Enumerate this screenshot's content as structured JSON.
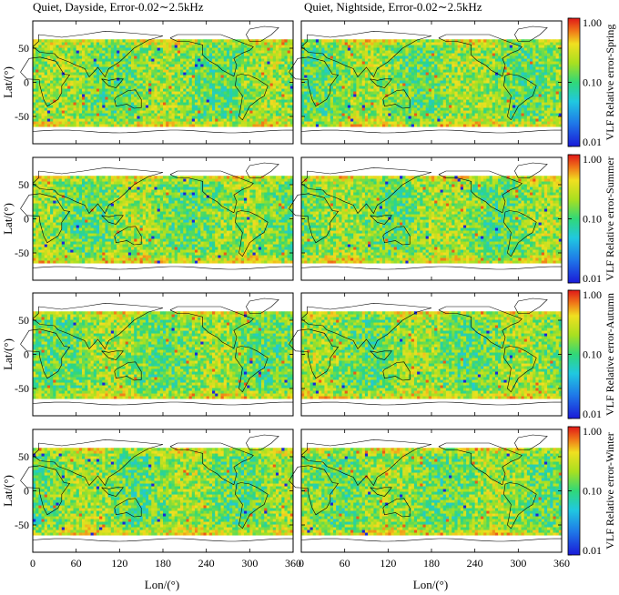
{
  "chart_data": {
    "type": "heatmap",
    "column_titles": [
      "Quiet, Dayside, Error-0.02∼2.5kHz",
      "Quiet, Nightside, Error-0.02∼2.5kHz"
    ],
    "xlabel": "Lon/(°)",
    "ylabel": "Lat/(°)",
    "xlim": [
      0,
      360
    ],
    "ylim": [
      -90,
      90
    ],
    "x_ticks": [
      "0",
      "60",
      "120",
      "180",
      "240",
      "300",
      "360"
    ],
    "y_ticks": [
      "50",
      "0",
      "-50"
    ],
    "colorbar": {
      "scale": "log",
      "range": [
        0.01,
        1.0
      ],
      "tick_labels": [
        "1.00",
        "0.10",
        "0.01"
      ],
      "colormap": [
        "#1a1ad8",
        "#1f78e8",
        "#20c8e0",
        "#30d878",
        "#a8e020",
        "#f0e020",
        "#f07818",
        "#e01818"
      ]
    },
    "rows": [
      {
        "season": "Spring",
        "colorbar_label": "VLF  Relative error-Spring"
      },
      {
        "season": "Summer",
        "colorbar_label": "VLF  Relative error-Summer"
      },
      {
        "season": "Autumn",
        "colorbar_label": "VLF  Relative error-Autumn"
      },
      {
        "season": "Winter",
        "colorbar_label": "VLF  Relative error-Winter"
      }
    ],
    "data_coverage_lat": [
      -65,
      62
    ],
    "typical_value_range": [
      0.05,
      0.3
    ]
  }
}
